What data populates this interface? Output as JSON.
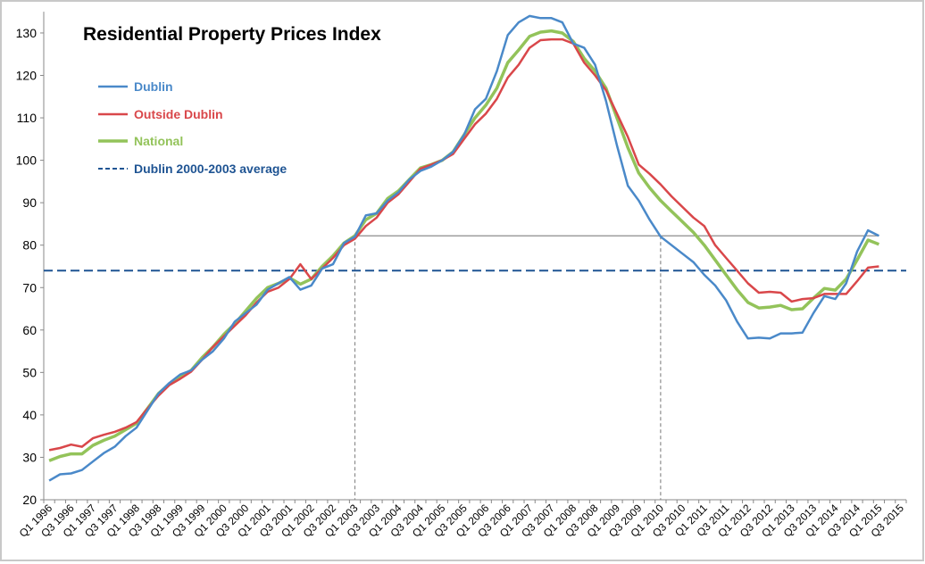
{
  "chart_data": {
    "type": "line",
    "title": "Residential Property Prices Index",
    "xlabel": "",
    "ylabel": "",
    "ylim": [
      20,
      135
    ],
    "y_ticks": [
      20,
      30,
      40,
      50,
      60,
      70,
      80,
      90,
      100,
      110,
      120,
      130
    ],
    "grid": false,
    "legend_position": "top-left",
    "x_tick_labels": [
      "Q1 1996",
      "Q3 1996",
      "Q1 1997",
      "Q3 1997",
      "Q1 1998",
      "Q3 1998",
      "Q1 1999",
      "Q3 1999",
      "Q1 2000",
      "Q3 2000",
      "Q1 2001",
      "Q3 2001",
      "Q1 2002",
      "Q3 2002",
      "Q1 2003",
      "Q3 2003",
      "Q1 2004",
      "Q3 2004",
      "Q1 2005",
      "Q3 2005",
      "Q1 2006",
      "Q3 2006",
      "Q1 2007",
      "Q3 2007",
      "Q1 2008",
      "Q3 2008",
      "Q1 2009",
      "Q3 2009",
      "Q1 2010",
      "Q3 2010",
      "Q1 2011",
      "Q3 2011",
      "Q1 2012",
      "Q3 2012",
      "Q1 2013",
      "Q3 2013",
      "Q1 2014",
      "Q3 2014",
      "Q1 2015",
      "Q3 2015"
    ],
    "x_start": "Q1 1996",
    "x_frequency": "quarterly",
    "series": [
      {
        "name": "Dublin",
        "color": "#4a89c9",
        "values": [
          24.5,
          26,
          26.2,
          27,
          29,
          31,
          32.5,
          35,
          37,
          41,
          45,
          47.5,
          49.5,
          50.5,
          53,
          55,
          58,
          62,
          64,
          66,
          69.5,
          71,
          72.5,
          69.5,
          70.5,
          74.5,
          75.5,
          80.5,
          82,
          87,
          87.5,
          90.5,
          92.5,
          95.5,
          97.5,
          98.5,
          100,
          102,
          106,
          112,
          114.5,
          121,
          129.5,
          132.5,
          134,
          133.5,
          133.5,
          132.5,
          127.5,
          126.5,
          122.5,
          114,
          103.5,
          94,
          90.5,
          86,
          82,
          80,
          78,
          76,
          73,
          70.5,
          67,
          62,
          58,
          58.2,
          58,
          59.2,
          59.2,
          59.4,
          64,
          68,
          67.3,
          71,
          78.5,
          83.5,
          82.2
        ]
      },
      {
        "name": "Outside Dublin",
        "color": "#d9474a",
        "values": [
          31.7,
          32.2,
          33,
          32.5,
          34.5,
          35.3,
          36,
          37,
          38.3,
          41.5,
          44.5,
          47,
          48.5,
          50.2,
          53,
          56,
          58.5,
          61,
          63.5,
          66.5,
          69,
          70,
          72,
          75.5,
          72,
          74.5,
          77,
          80,
          81.5,
          84.5,
          86.5,
          90,
          92,
          95,
          98,
          99,
          100,
          101.5,
          105,
          108.5,
          111,
          114.5,
          119.5,
          122.5,
          126.5,
          128.3,
          128.5,
          128.5,
          127.5,
          123,
          120,
          116.5,
          111,
          105.5,
          99,
          96.8,
          94.3,
          91.5,
          89,
          86.5,
          84.5,
          80,
          77,
          74,
          71,
          68.8,
          69,
          68.8,
          66.7,
          67.3,
          67.5,
          68.5,
          68.5,
          68.5,
          71.5,
          74.7,
          75
        ]
      },
      {
        "name": "National",
        "color": "#93c35a",
        "values": [
          29.2,
          30.2,
          30.8,
          30.8,
          32.8,
          34,
          35,
          36.5,
          38,
          41.5,
          45,
          47.3,
          49,
          50.5,
          53.5,
          56,
          59,
          61.5,
          64.5,
          67.5,
          70,
          71,
          72.3,
          70.8,
          72,
          75,
          77.5,
          80.5,
          82.2,
          86,
          87.5,
          91,
          92.8,
          95.5,
          98.2,
          99,
          100,
          102,
          106,
          110,
          113,
          117,
          123,
          126,
          129.2,
          130.2,
          130.5,
          130,
          128,
          124,
          121,
          117,
          110,
          103,
          97,
          93.5,
          90.5,
          88,
          85.5,
          83,
          80,
          76.5,
          73,
          69.5,
          66.5,
          65.2,
          65.4,
          65.8,
          64.8,
          65,
          67.5,
          69.8,
          69.4,
          72,
          76.5,
          81.2,
          80.2
        ]
      },
      {
        "name": "Dublin 2000-2003 average",
        "color": "#1f5493",
        "style": "dashed",
        "value": 74
      }
    ],
    "reference_lines": {
      "level": 82.2,
      "from": "Q1 2003",
      "to": "Q1 2015",
      "verticals_at": [
        "Q1 2003",
        "Q1 2010"
      ],
      "color": "#8c8c8c"
    }
  }
}
